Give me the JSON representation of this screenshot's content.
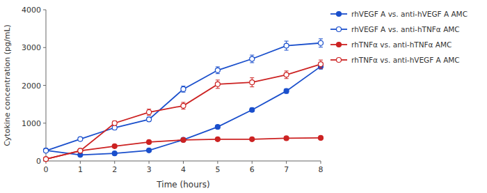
{
  "chart_data": {
    "type": "line",
    "xlabel": "Time (hours)",
    "ylabel": "Cytokine concentration (pg/mL)",
    "x": [
      0,
      1,
      2,
      3,
      4,
      5,
      6,
      7,
      8
    ],
    "xlim": [
      0,
      8
    ],
    "ylim": [
      0,
      4000
    ],
    "xticks": [
      0,
      1,
      2,
      3,
      4,
      5,
      6,
      7,
      8
    ],
    "yticks": [
      0,
      1000,
      2000,
      3000,
      4000
    ],
    "grid": false,
    "legend": "right",
    "series": [
      {
        "name": "rhVEGF A vs. anti-hVEGF A AMC",
        "color": "#1a4fcc",
        "marker": "circle",
        "values": [
          280,
          160,
          200,
          280,
          560,
          900,
          1350,
          1850,
          2500
        ],
        "errors": [
          20,
          15,
          15,
          20,
          30,
          40,
          50,
          60,
          70
        ]
      },
      {
        "name": "rhVEGF A vs. anti-hTNFα AMC",
        "color": "#1a4fcc",
        "marker": "open-circle",
        "values": [
          270,
          580,
          880,
          1100,
          1900,
          2400,
          2700,
          3050,
          3120
        ],
        "errors": [
          20,
          35,
          50,
          60,
          80,
          90,
          100,
          120,
          110
        ]
      },
      {
        "name": "rhTNFα vs. anti-hTNFα AMC",
        "color": "#cc2222",
        "marker": "circle",
        "values": [
          50,
          270,
          390,
          500,
          555,
          575,
          575,
          600,
          610
        ],
        "errors": [
          8,
          18,
          22,
          28,
          28,
          28,
          28,
          32,
          38
        ]
      },
      {
        "name": "rhTNFα vs. anti-hVEGF A  AMC",
        "color": "#cc2222",
        "marker": "open-circle",
        "values": [
          50,
          270,
          1000,
          1290,
          1460,
          2030,
          2080,
          2280,
          2560
        ],
        "errors": [
          8,
          28,
          60,
          80,
          90,
          110,
          120,
          100,
          110
        ]
      }
    ]
  }
}
